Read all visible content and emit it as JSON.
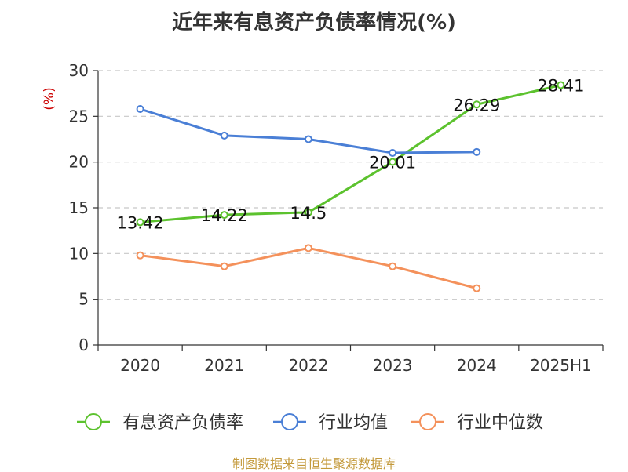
{
  "title": "近年来有息资产负债率情况(%)",
  "source": "制图数据来自恒生聚源数据库",
  "chart_data": {
    "type": "line",
    "title": "近年来有息资产负债率情况(%)",
    "ylabel": "(%)",
    "ylabel_color": "#cc0000",
    "categories": [
      "2020",
      "2021",
      "2022",
      "2023",
      "2024",
      "2025H1"
    ],
    "ylim": [
      0,
      30
    ],
    "yticks": [
      0,
      5,
      10,
      15,
      20,
      25,
      30
    ],
    "grid": true,
    "legend": "bottom",
    "series": [
      {
        "name": "有息资产负债率",
        "color": "#5cc22e",
        "values": [
          13.42,
          14.22,
          14.5,
          20.01,
          26.29,
          28.41
        ],
        "labels": [
          "13.42",
          "14.22",
          "14.5",
          "20.01",
          "26.29",
          "28.41"
        ]
      },
      {
        "name": "行业均值",
        "color": "#4a7fd6",
        "values": [
          25.8,
          22.9,
          22.5,
          21.0,
          21.1,
          null
        ]
      },
      {
        "name": "行业中位数",
        "color": "#f4915b",
        "values": [
          9.8,
          8.6,
          10.6,
          8.6,
          6.2,
          null
        ]
      }
    ]
  }
}
